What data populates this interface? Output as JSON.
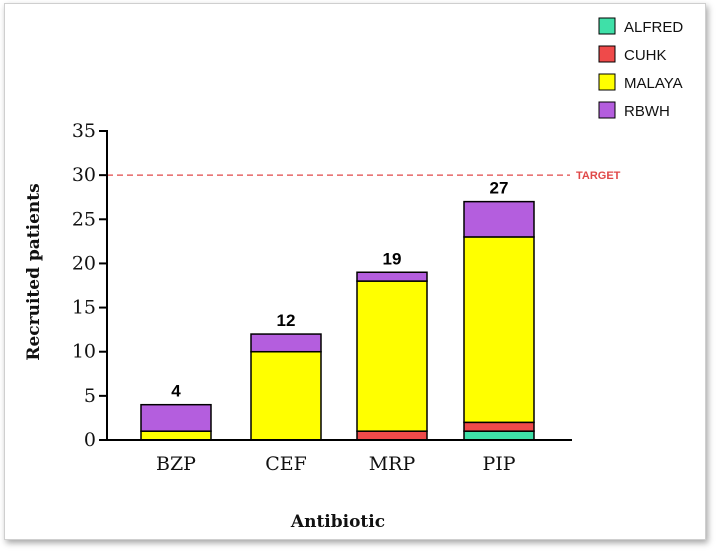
{
  "chart_data": {
    "type": "bar",
    "stacked": true,
    "categories": [
      "BZP",
      "CEF",
      "MRP",
      "PIP"
    ],
    "series": [
      {
        "name": "ALFRED",
        "color": "#3fe0a8",
        "values": [
          0,
          0,
          0,
          1
        ]
      },
      {
        "name": "CUHK",
        "color": "#ef4a4a",
        "values": [
          0,
          0,
          1,
          1
        ]
      },
      {
        "name": "MALAYA",
        "color": "#ffff00",
        "values": [
          1,
          10,
          17,
          21
        ]
      },
      {
        "name": "RBWH",
        "color": "#b45ede",
        "values": [
          3,
          2,
          1,
          4
        ]
      }
    ],
    "totals": [
      "4",
      "12",
      "19",
      "27"
    ],
    "xlabel": "Antibiotic",
    "ylabel": "Recruited patients",
    "ylim": [
      0,
      35
    ],
    "yticks": [
      "0",
      "5",
      "10",
      "15",
      "20",
      "25",
      "30",
      "35"
    ],
    "target": {
      "value": 30,
      "label": "TARGET",
      "color": "#e04848"
    },
    "grid": false,
    "legend_position": "top-right"
  }
}
